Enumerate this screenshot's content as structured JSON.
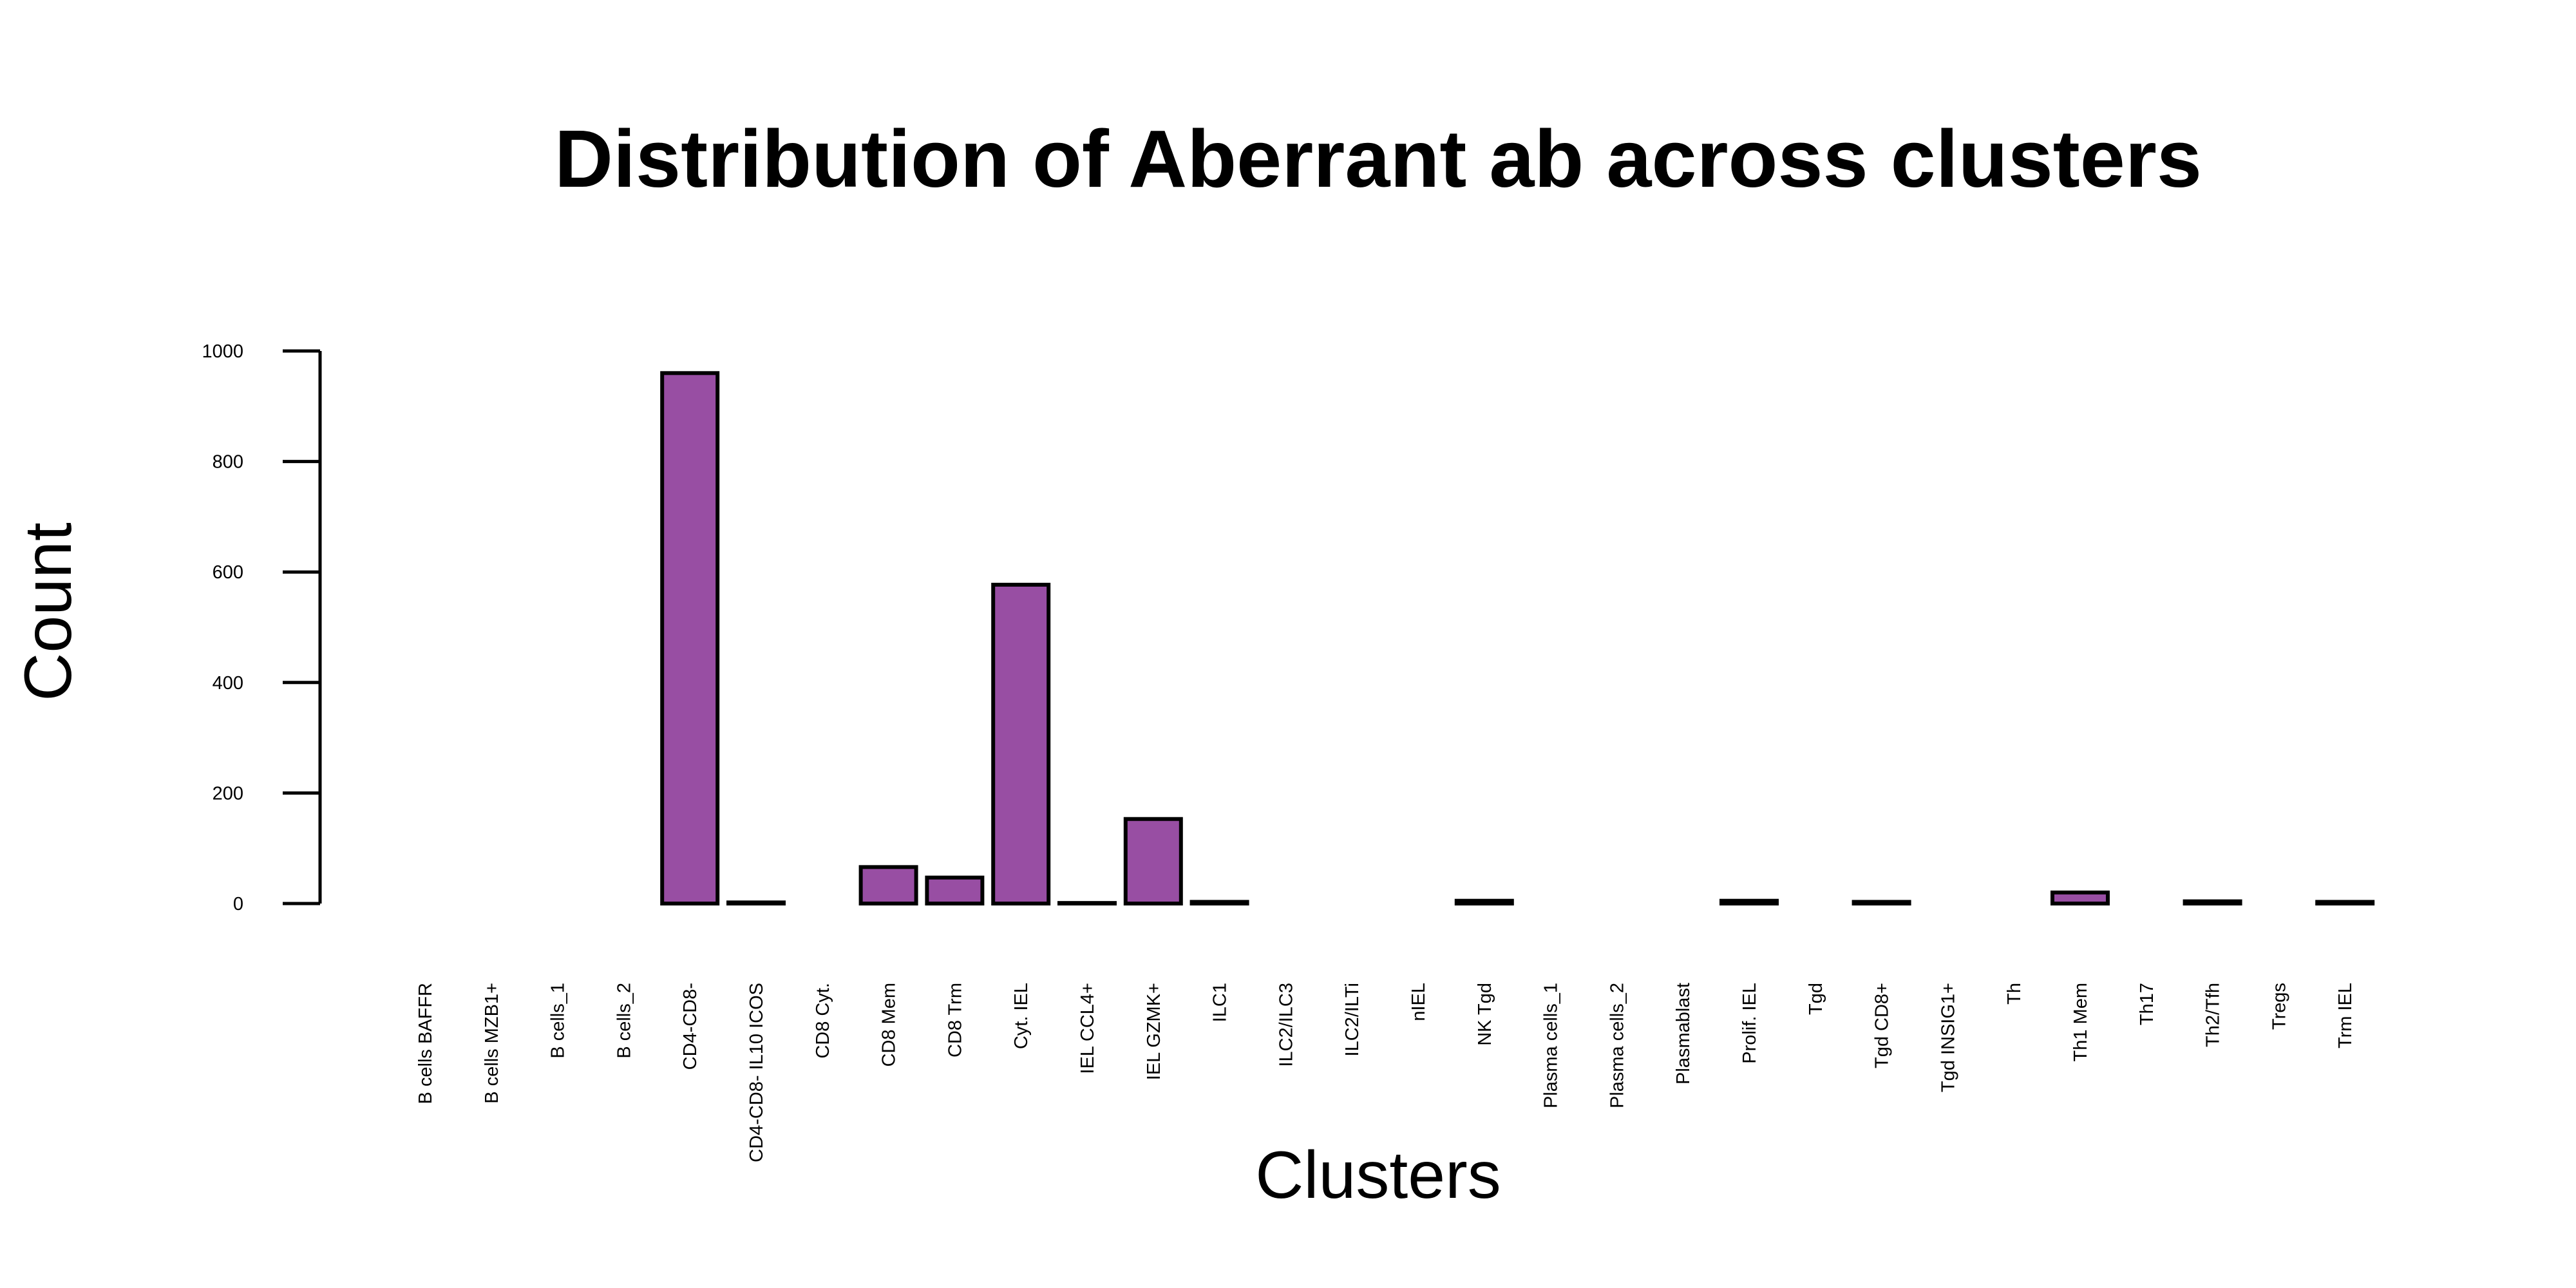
{
  "chart_data": {
    "type": "bar",
    "title": "Distribution of Aberrant ab across clusters",
    "xlabel": "Clusters",
    "ylabel": "Count",
    "ylim": [
      0,
      1000
    ],
    "yticks": [
      0,
      200,
      400,
      600,
      800,
      1000
    ],
    "grid": false,
    "bar_color": "#984EA3",
    "bar_border_color": "#000000",
    "categories": [
      "B cells BAFFR",
      "B cells MZB1+",
      "B cells_1",
      "B cells_2",
      "CD4-CD8-",
      "CD4-CD8- IL10 ICOS",
      "CD8 Cyt.",
      "CD8 Mem",
      "CD8 Trm",
      "Cyt. IEL",
      "IEL CCL4+",
      "IEL GZMK+",
      "ILC1",
      "ILC2/ILC3",
      "ILC2/ILTi",
      "nIEL",
      "NK Tgd",
      "Plasma cells_1",
      "Plasma cells_2",
      "Plasmablast",
      "Prolif. IEL",
      "Tgd",
      "Tgd CD8+",
      "Tgd INSIG1+",
      "Th",
      "Th1 Mem",
      "Th17",
      "Th2/Tfh",
      "Tregs",
      "Trm IEL"
    ],
    "values": [
      0,
      0,
      0,
      0,
      960,
      2,
      0,
      66,
      47,
      577,
      1,
      153,
      3,
      0,
      0,
      0,
      5,
      0,
      0,
      0,
      5,
      0,
      3,
      0,
      0,
      20,
      0,
      4,
      0,
      3
    ]
  }
}
